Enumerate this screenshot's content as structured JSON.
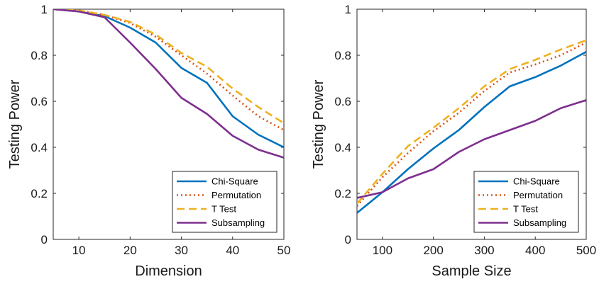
{
  "chart_data": [
    {
      "type": "line",
      "xlabel": "Dimension",
      "ylabel": "Testing Power",
      "xlim": [
        5,
        50
      ],
      "ylim": [
        0,
        1
      ],
      "xticks": [
        10,
        20,
        30,
        40,
        50
      ],
      "yticks": [
        0,
        0.2,
        0.4,
        0.6,
        0.8,
        1
      ],
      "ytick_labels": [
        "0",
        "0.2",
        "0.4",
        "0.6",
        "0.8",
        "1"
      ],
      "legend_position": "bottom-right",
      "x": [
        5,
        10,
        15,
        20,
        25,
        30,
        35,
        40,
        45,
        50
      ],
      "series": [
        {
          "name": "Chi-Square",
          "values": [
            1.0,
            0.99,
            0.97,
            0.92,
            0.855,
            0.745,
            0.68,
            0.535,
            0.455,
            0.4
          ]
        },
        {
          "name": "Permutation",
          "values": [
            1.0,
            0.995,
            0.975,
            0.94,
            0.88,
            0.8,
            0.72,
            0.625,
            0.535,
            0.475
          ]
        },
        {
          "name": "T Test",
          "values": [
            1.0,
            0.995,
            0.975,
            0.945,
            0.89,
            0.81,
            0.75,
            0.655,
            0.575,
            0.505
          ]
        },
        {
          "name": "Subsampling",
          "values": [
            1.0,
            0.99,
            0.965,
            0.855,
            0.74,
            0.615,
            0.545,
            0.45,
            0.39,
            0.355
          ]
        }
      ]
    },
    {
      "type": "line",
      "xlabel": "Sample Size",
      "ylabel": "Testing Power",
      "xlim": [
        50,
        500
      ],
      "ylim": [
        0,
        1
      ],
      "xticks": [
        100,
        200,
        300,
        400,
        500
      ],
      "yticks": [
        0,
        0.2,
        0.4,
        0.6,
        0.8,
        1
      ],
      "ytick_labels": [
        "0",
        "0.2",
        "0.4",
        "0.6",
        "0.8",
        "1"
      ],
      "legend_position": "bottom-right",
      "x": [
        50,
        100,
        150,
        200,
        250,
        300,
        350,
        400,
        450,
        500
      ],
      "series": [
        {
          "name": "Chi-Square",
          "values": [
            0.115,
            0.205,
            0.305,
            0.395,
            0.475,
            0.575,
            0.665,
            0.705,
            0.755,
            0.815
          ]
        },
        {
          "name": "Permutation",
          "values": [
            0.145,
            0.27,
            0.375,
            0.47,
            0.55,
            0.645,
            0.725,
            0.76,
            0.8,
            0.855
          ]
        },
        {
          "name": "T Test",
          "values": [
            0.155,
            0.285,
            0.405,
            0.485,
            0.57,
            0.665,
            0.74,
            0.78,
            0.825,
            0.865
          ]
        },
        {
          "name": "Subsampling",
          "values": [
            0.18,
            0.205,
            0.265,
            0.305,
            0.38,
            0.435,
            0.475,
            0.515,
            0.57,
            0.605
          ]
        }
      ]
    }
  ],
  "style": {
    "series_colors": [
      "#0072bd",
      "#d95319",
      "#edb120",
      "#7e2f8e"
    ],
    "series_dash": [
      "solid",
      "dotted",
      "dashed",
      "solid"
    ],
    "axis_color": "#262626"
  }
}
